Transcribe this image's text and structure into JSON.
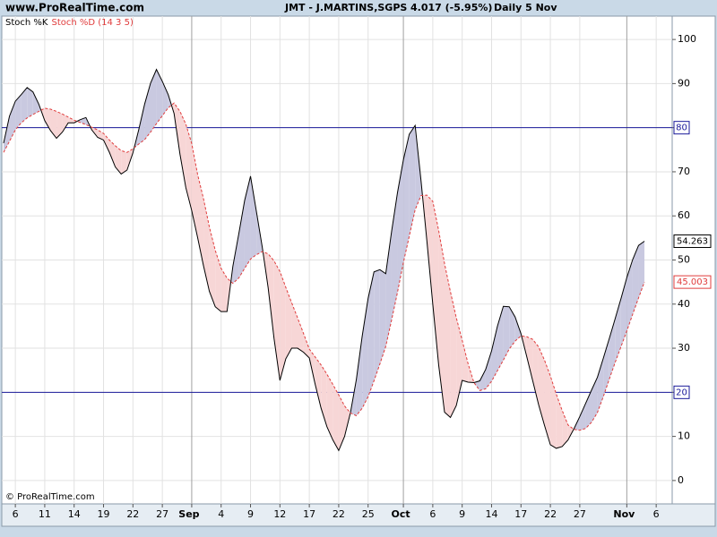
{
  "source": "www.ProRealTime.com",
  "footer": "© ProRealTime.com",
  "header": {
    "title": "JMT - J.MARTINS,SGPS",
    "price": "4.017 (-5.95%)",
    "period": "Daily  5 Nov"
  },
  "chart_data": {
    "type": "line",
    "categories": [
      null,
      null,
      "6",
      null,
      null,
      null,
      null,
      "11",
      null,
      null,
      null,
      null,
      "14",
      null,
      null,
      null,
      null,
      "19",
      null,
      null,
      null,
      null,
      "22",
      null,
      null,
      null,
      null,
      "27",
      null,
      null,
      null,
      null,
      "Sep",
      null,
      null,
      null,
      null,
      "4",
      null,
      null,
      null,
      null,
      "9",
      null,
      null,
      null,
      null,
      "12",
      null,
      null,
      null,
      null,
      "17",
      null,
      null,
      null,
      null,
      "22",
      null,
      null,
      null,
      null,
      "25",
      null,
      null,
      null,
      null,
      null,
      "Oct",
      null,
      null,
      null,
      null,
      "6",
      null,
      null,
      null,
      null,
      "9",
      null,
      null,
      null,
      null,
      "14",
      null,
      null,
      null,
      null,
      "17",
      null,
      null,
      null,
      null,
      "22",
      null,
      null,
      null,
      null,
      "27",
      null,
      null,
      null,
      null,
      null,
      null,
      null,
      "Nov",
      null,
      null,
      null,
      null,
      "6"
    ],
    "month_labels": [
      "Sep",
      "Oct",
      "Nov"
    ],
    "series": [
      {
        "name": "Stoch %K",
        "color": "#000000",
        "fill_above": "#c9c9e0",
        "values": [
          76.5,
          82.6,
          86,
          87.5,
          89.1,
          88.1,
          85.3,
          81.6,
          79.3,
          77.6,
          79.0,
          81.1,
          81.1,
          81.8,
          82.3,
          79.5,
          77.8,
          77.2,
          74.4,
          71.1,
          69.5,
          70.4,
          74.3,
          79.6,
          85.4,
          90.1,
          93.2,
          90.5,
          87.5,
          83.2,
          74.0,
          66.4,
          61.2,
          55.1,
          48.7,
          42.9,
          39.4,
          38.3,
          38.3,
          48.6,
          55.9,
          63.5,
          69.0,
          61.0,
          52.9,
          43.7,
          32.2,
          22.7,
          27.6,
          30.0,
          30.0,
          29.1,
          27.8,
          21.8,
          16.4,
          12.2,
          9.2,
          6.8,
          10.0,
          15.4,
          22.9,
          32.8,
          41.3,
          47.3,
          47.8,
          46.9,
          56.5,
          65.3,
          72.7,
          78.5,
          80.5,
          68.0,
          54.3,
          40.0,
          26.2,
          15.5,
          14.3,
          17.0,
          22.7,
          22.3,
          22.2,
          22.6,
          25.2,
          29.4,
          35.0,
          39.5,
          39.4,
          37.1,
          33.3,
          28.0,
          22.6,
          17.2,
          12.5,
          8.1,
          7.3,
          7.7,
          9.2,
          11.7,
          14.5,
          17.5,
          20.5,
          23.4,
          27.7,
          32.1,
          36.6,
          41.2,
          46.0,
          50.1,
          53.3,
          54.263,
          null,
          null
        ]
      },
      {
        "name": "Stoch %D (14 3 5)",
        "color": "#e03c3c",
        "fill_above": "#f7d6d6",
        "dashed": true,
        "values": [
          74.4,
          76.9,
          79.5,
          81.1,
          82.2,
          83.0,
          83.7,
          84.4,
          84.2,
          83.7,
          83.1,
          82.4,
          81.7,
          81.2,
          80.7,
          80.1,
          79.5,
          78.7,
          77.2,
          75.9,
          74.8,
          74.4,
          75.2,
          76.3,
          77.3,
          79.0,
          80.9,
          82.7,
          84.5,
          85.6,
          83.7,
          80.8,
          76.4,
          69.4,
          63.9,
          57.5,
          52.2,
          48.1,
          45.9,
          44.7,
          45.9,
          48.1,
          50.2,
          51.2,
          51.9,
          51.4,
          49.8,
          47.4,
          43.8,
          40.3,
          36.9,
          33.4,
          29.8,
          28.0,
          26.2,
          24.1,
          21.8,
          19.4,
          16.9,
          15.3,
          14.7,
          16.4,
          19.0,
          22.6,
          26.4,
          30.4,
          36.4,
          42.7,
          49.4,
          55.4,
          61.4,
          64.6,
          64.7,
          63.3,
          56.7,
          49.2,
          42.8,
          36.9,
          31.8,
          26.5,
          22.2,
          20.4,
          20.8,
          22.5,
          24.9,
          27.3,
          29.8,
          31.6,
          32.8,
          32.6,
          32.0,
          30.3,
          27.3,
          23.7,
          19.6,
          15.9,
          12.6,
          11.6,
          11.4,
          11.8,
          13.2,
          15.4,
          19.0,
          22.9,
          26.7,
          30.3,
          33.9,
          37.7,
          41.4,
          45.003,
          null,
          null
        ]
      }
    ],
    "levels": [
      80,
      20
    ],
    "level_color": "#1a1a9a",
    "ylim": [
      -5.3,
      105.3
    ],
    "yticks": [
      0,
      10,
      20,
      30,
      40,
      50,
      60,
      70,
      80,
      90,
      100
    ],
    "grid": true
  }
}
